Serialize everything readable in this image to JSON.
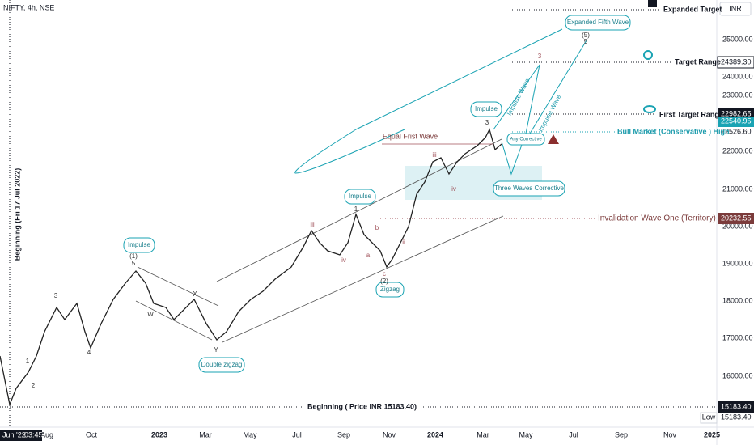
{
  "header": {
    "symbol": "NIFTY, 4h, NSE",
    "currency": "INR"
  },
  "price_axis": [
    "25000.00",
    "24000.00",
    "23000.00",
    "22000.00",
    "21000.00",
    "20000.00",
    "19000.00",
    "18000.00",
    "17000.00",
    "16000.00"
  ],
  "price_labels": [
    "24389.30",
    "22982.65",
    "22540.95",
    "22526.60",
    "20232.55",
    "15183.40",
    "Low",
    "15183.40"
  ],
  "time_axis": [
    "Jun '22",
    "03:45",
    "Aug",
    "Oct",
    "2023",
    "Mar",
    "May",
    "Jul",
    "Sep",
    "Nov",
    "2024",
    "Mar",
    "May",
    "Jul",
    "Sep",
    "Nov",
    "2025"
  ],
  "annotations": [
    "Expanded Target",
    "Target Range",
    "First Target Range",
    "Bull Market (Conservative ) High",
    "Invalidation Wave One (Territory)",
    "Beginning ( Price INR 15183.40)",
    "Beginning (Fri 17 Jul 2022)",
    "Equal Frist Wave",
    "Impulse Wave",
    "Impulse Wave"
  ],
  "bubbles": [
    "Expanded Fifth Wave",
    "Impulse",
    "Any Corrective",
    "Three Waves Corrective",
    "Impulse",
    "Impulse",
    "Zigzag",
    "Double zigzag"
  ],
  "wave_labels": [
    "1",
    "2",
    "3",
    "4",
    "5",
    "(1)",
    "W",
    "X",
    "Y",
    "iii",
    "iv",
    "a",
    "b",
    "c",
    "(2)",
    "1",
    "ii",
    "iii",
    "iv",
    "3",
    "3",
    "(5)",
    "5"
  ]
}
